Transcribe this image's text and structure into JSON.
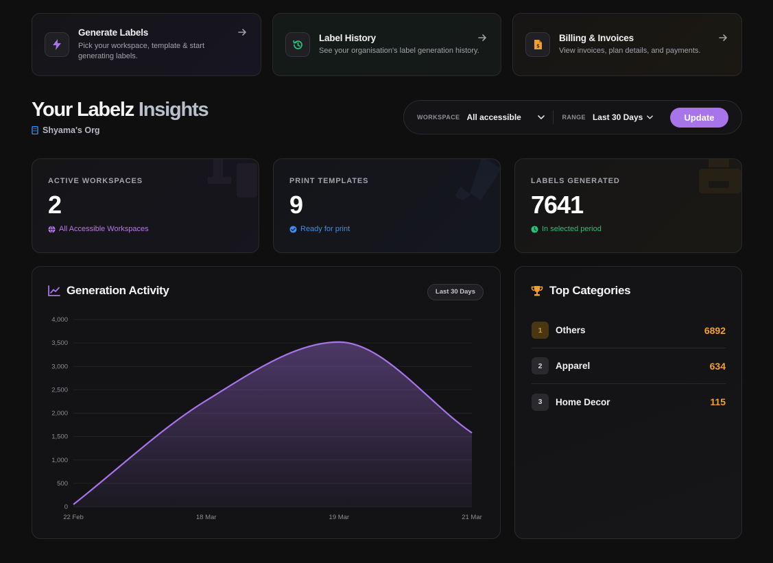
{
  "quick_links": [
    {
      "title": "Generate Labels",
      "desc": "Pick your workspace, template & start generating labels.",
      "icon": "bolt-icon",
      "color": "#a874ea"
    },
    {
      "title": "Label History",
      "desc": "See your organisation's label generation history.",
      "icon": "history-icon",
      "color": "#22c27a"
    },
    {
      "title": "Billing & Invoices",
      "desc": "View invoices, plan details, and payments.",
      "icon": "invoice-icon",
      "color": "#f3a02a"
    }
  ],
  "header": {
    "title_main": "Your Labelz",
    "title_accent": "Insights",
    "org": "Shyama's Org"
  },
  "filters": {
    "workspace_label": "WORKSPACE",
    "workspace_value": "All accessible",
    "range_label": "RANGE",
    "range_value": "Last 30 Days",
    "update_label": "Update"
  },
  "stats": [
    {
      "label": "ACTIVE WORKSPACES",
      "value": "2",
      "sub": "All Accessible Workspaces",
      "color": "#b878f0"
    },
    {
      "label": "PRINT TEMPLATES",
      "value": "9",
      "sub": "Ready for print",
      "color": "#3d8df0"
    },
    {
      "label": "LABELS GENERATED",
      "value": "7641",
      "sub": "In selected period",
      "color": "#22c27a"
    }
  ],
  "activity": {
    "title": "Generation Activity",
    "range_pill": "Last 30 Days"
  },
  "chart_data": {
    "type": "area",
    "title": "Generation Activity",
    "x": [
      "22 Feb",
      "18 Mar",
      "19 Mar",
      "21 Mar"
    ],
    "series": [
      {
        "values": [
          50,
          2270,
          3520,
          1580
        ]
      }
    ],
    "ylim": [
      0,
      4000
    ],
    "yticks": [
      0,
      500,
      1000,
      1500,
      2000,
      2500,
      3000,
      3500,
      4000
    ],
    "ytick_labels": [
      "0",
      "500",
      "1,000",
      "1,500",
      "2,000",
      "2,500",
      "3,000",
      "3,500",
      "4,000"
    ],
    "grid": true,
    "color": "#a874ea"
  },
  "categories": {
    "title": "Top Categories",
    "items": [
      {
        "rank": "1",
        "name": "Others",
        "count": "6892"
      },
      {
        "rank": "2",
        "name": "Apparel",
        "count": "634"
      },
      {
        "rank": "3",
        "name": "Home Decor",
        "count": "115"
      }
    ]
  }
}
